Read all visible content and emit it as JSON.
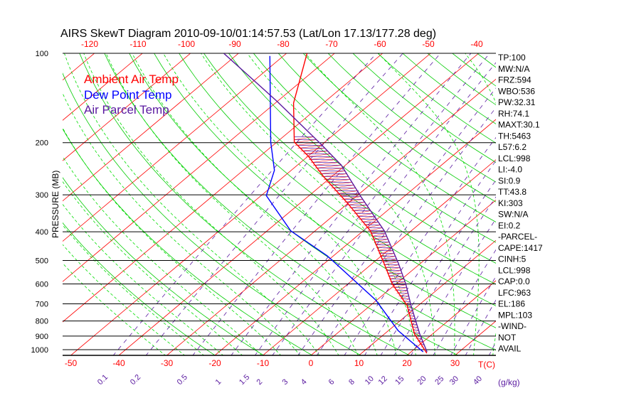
{
  "chart_data": {
    "type": "line",
    "title": "AIRS SkewT Diagram 2010-09-10/01:14:57.53 (Lat/Lon 17.13/177.28 deg)",
    "ylabel": "PRESSURE (MB)",
    "xlabel": "T(C)",
    "mixing_ratio_unit_label": "(g/kg)",
    "pressure_ticks": [
      100,
      200,
      300,
      400,
      500,
      600,
      700,
      800,
      900,
      1000
    ],
    "top_temp_ticks": [
      -120,
      -110,
      -100,
      -90,
      -80,
      -70,
      -60,
      -50,
      -40
    ],
    "bottom_temp_ticks": [
      -50,
      -40,
      -30,
      -20,
      -10,
      0,
      10,
      20,
      30
    ],
    "mixing_ratio_ticks": [
      "0.1",
      "0.2",
      "0.5",
      "1",
      "1.5",
      "2",
      "3",
      "4",
      "6",
      "8",
      "10",
      "12",
      "15",
      "20",
      "25",
      "30",
      "40"
    ],
    "ylim_hpa": [
      1045,
      100
    ],
    "legend": [
      {
        "label": "Ambient Air Temp",
        "color": "#ff0000"
      },
      {
        "label": "Dew Point Temp",
        "color": "#0000ff"
      },
      {
        "label": "Air Parcel Temp",
        "color": "#5a1aa0"
      }
    ],
    "series": [
      {
        "name": "Ambient Air Temp",
        "color": "#ff0000",
        "p": [
          1028,
          886,
          710,
          601,
          510,
          397,
          318,
          262,
          222,
          199,
          147,
          100
        ],
        "t": [
          23.6,
          16.3,
          7.7,
          -0.7,
          -7.7,
          -18.5,
          -30.5,
          -41.4,
          -50.0,
          -56.4,
          -66.2,
          -75.7
        ]
      },
      {
        "name": "Dew Point Temp",
        "color": "#0000ff",
        "p": [
          1017,
          862,
          680,
          482,
          397,
          302,
          248,
          199,
          102
        ],
        "t": [
          22.5,
          12.0,
          -0.2,
          -21.3,
          -35.1,
          -48.9,
          -53.5,
          -61.3,
          -82.8
        ]
      },
      {
        "name": "Air Parcel Temp",
        "color": "#5a1aa0",
        "p": [
          1017,
          886,
          710,
          601,
          510,
          397,
          306,
          238,
          201,
          145,
          100
        ],
        "t": [
          23.3,
          17.4,
          8.5,
          2.1,
          -4.7,
          -15.6,
          -28.7,
          -40.9,
          -50.7,
          -70.1,
          -93.0
        ]
      }
    ],
    "grid": true
  },
  "indices": [
    "TP:100",
    "MW:N/A",
    "FRZ:594",
    "WBO:536",
    "PW:32.31",
    "RH:74.1",
    "MAXT:30.1",
    "TH:5463",
    "L57:6.2",
    "LCL:998",
    "LI:-4.0",
    "SI:0.9",
    "TT:43.8",
    "KI:303",
    "SW:N/A",
    "EI:0.2",
    "-PARCEL-",
    "CAPE:1417",
    "CINH:5",
    "LCL:998",
    "CAP:0.0",
    "LFC:963",
    "EL:186",
    "MPL:103",
    "-WIND-",
    "NOT",
    "AVAIL"
  ]
}
